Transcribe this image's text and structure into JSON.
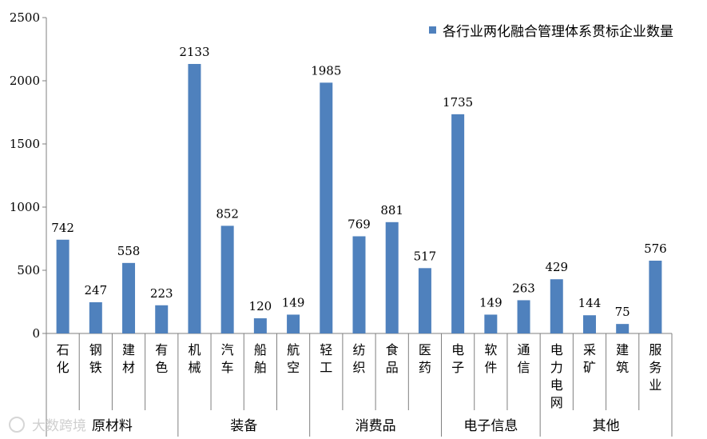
{
  "chart_data": {
    "type": "bar",
    "title": "",
    "xlabel": "",
    "ylabel": "",
    "ylim": [
      0,
      2500
    ],
    "yticks": [
      0,
      500,
      1000,
      1500,
      2000,
      2500
    ],
    "grid": false,
    "legend_position": "top-right",
    "series": [
      {
        "name": "各行业两化融合管理体系贯标企业数量",
        "color": "#4F81BD",
        "values": [
          742,
          247,
          558,
          223,
          2133,
          852,
          120,
          149,
          1985,
          769,
          881,
          517,
          1735,
          149,
          263,
          429,
          144,
          75,
          576
        ]
      }
    ],
    "categories": [
      "石化",
      "钢铁",
      "建材",
      "有色",
      "机械",
      "汽车",
      "船舶",
      "航空",
      "轻工",
      "纺织",
      "食品",
      "医药",
      "电子",
      "软件",
      "通信",
      "电力电网",
      "采矿",
      "建筑",
      "服务业"
    ],
    "groups": [
      {
        "label": "原材料",
        "count": 4
      },
      {
        "label": "装备",
        "count": 4
      },
      {
        "label": "消费品",
        "count": 4
      },
      {
        "label": "电子信息",
        "count": 3
      },
      {
        "label": "其他",
        "count": 4
      }
    ]
  },
  "watermark": "大数跨境"
}
